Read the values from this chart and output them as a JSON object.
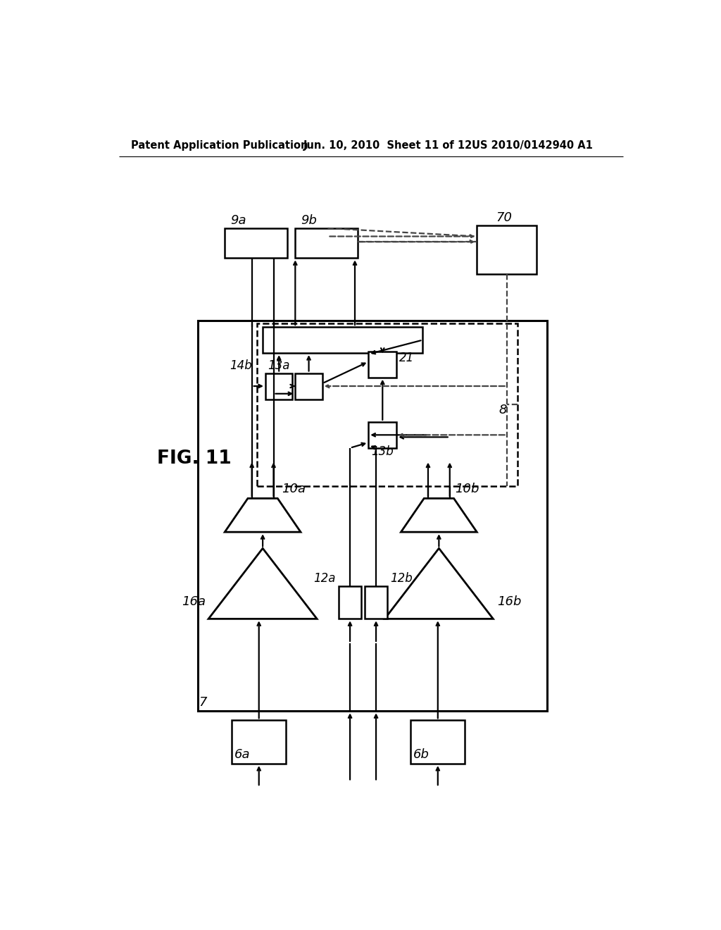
{
  "background_color": "#ffffff",
  "header_left": "Patent Application Publication",
  "header_center": "Jun. 10, 2010  Sheet 11 of 12",
  "header_right": "US 2010/0142940 A1",
  "fig_label": "FIG. 11",
  "line_color": "#000000",
  "dashed_color": "#444444"
}
